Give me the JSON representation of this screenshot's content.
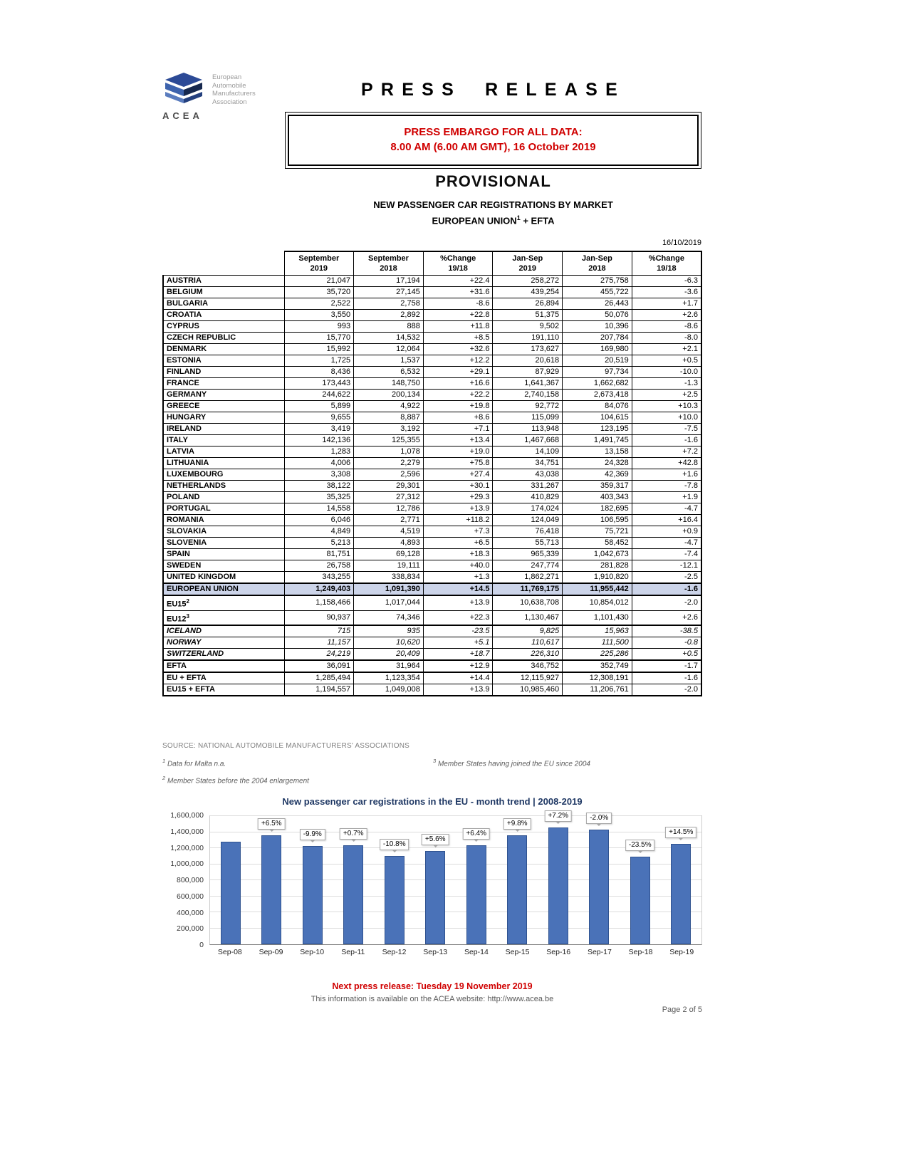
{
  "colors": {
    "accent_red": "#d00000",
    "eu_row_bg": "#ccd4e9",
    "bar_color": "#4a72b8",
    "chart_title": "#1f3864"
  },
  "logo": {
    "org_lines": [
      "European",
      "Automobile",
      "Manufacturers",
      "Association"
    ],
    "acronym": "ACEA"
  },
  "header": {
    "title": "PRESS RELEASE",
    "embargo_line1": "PRESS EMBARGO FOR ALL DATA:",
    "embargo_line2": "8.00 AM (6.00 AM GMT), 16 October 2019",
    "provisional": "PROVISIONAL",
    "subtitle": "NEW PASSENGER CAR REGISTRATIONS BY MARKET",
    "region_line": {
      "main": "EUROPEAN UNION",
      "sup": "1",
      "tail": " + EFTA"
    },
    "date": "16/10/2019"
  },
  "table": {
    "headers": [
      {
        "line1": "September",
        "line2": "2019"
      },
      {
        "line1": "September",
        "line2": "2018"
      },
      {
        "line1": "%Change",
        "line2": "19/18"
      },
      {
        "line1": "Jan-Sep",
        "line2": "2019"
      },
      {
        "line1": "Jan-Sep",
        "line2": "2018"
      },
      {
        "line1": "%Change",
        "line2": "19/18"
      }
    ],
    "rows": [
      {
        "label": "AUSTRIA",
        "values": [
          "21,047",
          "17,194",
          "+22.4",
          "258,272",
          "275,758",
          "-6.3"
        ]
      },
      {
        "label": "BELGIUM",
        "values": [
          "35,720",
          "27,145",
          "+31.6",
          "439,254",
          "455,722",
          "-3.6"
        ]
      },
      {
        "label": "BULGARIA",
        "values": [
          "2,522",
          "2,758",
          "-8.6",
          "26,894",
          "26,443",
          "+1.7"
        ]
      },
      {
        "label": "CROATIA",
        "values": [
          "3,550",
          "2,892",
          "+22.8",
          "51,375",
          "50,076",
          "+2.6"
        ]
      },
      {
        "label": "CYPRUS",
        "values": [
          "993",
          "888",
          "+11.8",
          "9,502",
          "10,396",
          "-8.6"
        ]
      },
      {
        "label": "CZECH REPUBLIC",
        "values": [
          "15,770",
          "14,532",
          "+8.5",
          "191,110",
          "207,784",
          "-8.0"
        ]
      },
      {
        "label": "DENMARK",
        "values": [
          "15,992",
          "12,064",
          "+32.6",
          "173,627",
          "169,980",
          "+2.1"
        ]
      },
      {
        "label": "ESTONIA",
        "values": [
          "1,725",
          "1,537",
          "+12.2",
          "20,618",
          "20,519",
          "+0.5"
        ]
      },
      {
        "label": "FINLAND",
        "values": [
          "8,436",
          "6,532",
          "+29.1",
          "87,929",
          "97,734",
          "-10.0"
        ]
      },
      {
        "label": "FRANCE",
        "values": [
          "173,443",
          "148,750",
          "+16.6",
          "1,641,367",
          "1,662,682",
          "-1.3"
        ]
      },
      {
        "label": "GERMANY",
        "values": [
          "244,622",
          "200,134",
          "+22.2",
          "2,740,158",
          "2,673,418",
          "+2.5"
        ]
      },
      {
        "label": "GREECE",
        "values": [
          "5,899",
          "4,922",
          "+19.8",
          "92,772",
          "84,076",
          "+10.3"
        ]
      },
      {
        "label": "HUNGARY",
        "values": [
          "9,655",
          "8,887",
          "+8.6",
          "115,099",
          "104,615",
          "+10.0"
        ]
      },
      {
        "label": "IRELAND",
        "values": [
          "3,419",
          "3,192",
          "+7.1",
          "113,948",
          "123,195",
          "-7.5"
        ]
      },
      {
        "label": "ITALY",
        "values": [
          "142,136",
          "125,355",
          "+13.4",
          "1,467,668",
          "1,491,745",
          "-1.6"
        ]
      },
      {
        "label": "LATVIA",
        "values": [
          "1,283",
          "1,078",
          "+19.0",
          "14,109",
          "13,158",
          "+7.2"
        ]
      },
      {
        "label": "LITHUANIA",
        "values": [
          "4,006",
          "2,279",
          "+75.8",
          "34,751",
          "24,328",
          "+42.8"
        ]
      },
      {
        "label": "LUXEMBOURG",
        "values": [
          "3,308",
          "2,596",
          "+27.4",
          "43,038",
          "42,369",
          "+1.6"
        ]
      },
      {
        "label": "NETHERLANDS",
        "values": [
          "38,122",
          "29,301",
          "+30.1",
          "331,267",
          "359,317",
          "-7.8"
        ]
      },
      {
        "label": "POLAND",
        "values": [
          "35,325",
          "27,312",
          "+29.3",
          "410,829",
          "403,343",
          "+1.9"
        ]
      },
      {
        "label": "PORTUGAL",
        "values": [
          "14,558",
          "12,786",
          "+13.9",
          "174,024",
          "182,695",
          "-4.7"
        ]
      },
      {
        "label": "ROMANIA",
        "values": [
          "6,046",
          "2,771",
          "+118.2",
          "124,049",
          "106,595",
          "+16.4"
        ]
      },
      {
        "label": "SLOVAKIA",
        "values": [
          "4,849",
          "4,519",
          "+7.3",
          "76,418",
          "75,721",
          "+0.9"
        ]
      },
      {
        "label": "SLOVENIA",
        "values": [
          "5,213",
          "4,893",
          "+6.5",
          "55,713",
          "58,452",
          "-4.7"
        ]
      },
      {
        "label": "SPAIN",
        "values": [
          "81,751",
          "69,128",
          "+18.3",
          "965,339",
          "1,042,673",
          "-7.4"
        ]
      },
      {
        "label": "SWEDEN",
        "values": [
          "26,758",
          "19,111",
          "+40.0",
          "247,774",
          "281,828",
          "-12.1"
        ]
      },
      {
        "label": "UNITED KINGDOM",
        "values": [
          "343,255",
          "338,834",
          "+1.3",
          "1,862,271",
          "1,910,820",
          "-2.5"
        ]
      },
      {
        "label": "EUROPEAN UNION",
        "values": [
          "1,249,403",
          "1,091,390",
          "+14.5",
          "11,769,175",
          "11,955,442",
          "-1.6"
        ],
        "style": [
          "highlight",
          "rule-top",
          "rule-bottom"
        ]
      },
      {
        "label": "EU15",
        "sup": "2",
        "values": [
          "1,158,466",
          "1,017,044",
          "+13.9",
          "10,638,708",
          "10,854,012",
          "-2.0"
        ]
      },
      {
        "label": "EU12",
        "sup": "3",
        "values": [
          "90,937",
          "74,346",
          "+22.3",
          "1,130,467",
          "1,101,430",
          "+2.6"
        ]
      },
      {
        "label": "ICELAND",
        "values": [
          "715",
          "935",
          "-23.5",
          "9,825",
          "15,963",
          "-38.5"
        ],
        "style": [
          "italic",
          "rule-top"
        ]
      },
      {
        "label": "NORWAY",
        "values": [
          "11,157",
          "10,620",
          "+5.1",
          "110,617",
          "111,500",
          "-0.8"
        ],
        "style": [
          "italic"
        ]
      },
      {
        "label": "SWITZERLAND",
        "values": [
          "24,219",
          "20,409",
          "+18.7",
          "226,310",
          "225,286",
          "+0.5"
        ],
        "style": [
          "italic"
        ]
      },
      {
        "label": "EFTA",
        "values": [
          "36,091",
          "31,964",
          "+12.9",
          "346,752",
          "352,749",
          "-1.7"
        ],
        "style": [
          "rule-top"
        ]
      },
      {
        "label": "EU + EFTA",
        "values": [
          "1,285,494",
          "1,123,354",
          "+14.4",
          "12,115,927",
          "12,308,191",
          "-1.6"
        ],
        "style": [
          "rule-top"
        ]
      },
      {
        "label": "EU15 + EFTA",
        "values": [
          "1,194,557",
          "1,049,008",
          "+13.9",
          "10,985,460",
          "11,206,761",
          "-2.0"
        ]
      }
    ]
  },
  "footnotes": {
    "source": "SOURCE: NATIONAL AUTOMOBILE MANUFACTURERS' ASSOCIATIONS",
    "fn1": {
      "sup": "1",
      "text": " Data for Malta n.a."
    },
    "fn2": {
      "sup": "2",
      "text": " Member States before the 2004 enlargement"
    },
    "fn3": {
      "sup": "3",
      "text": " Member States having joined the EU since 2004"
    }
  },
  "chart_data": {
    "type": "bar",
    "title": "New passenger car registrations in the EU - month trend | 2008-2019",
    "categories": [
      "Sep-08",
      "Sep-09",
      "Sep-10",
      "Sep-11",
      "Sep-12",
      "Sep-13",
      "Sep-14",
      "Sep-15",
      "Sep-16",
      "Sep-17",
      "Sep-18",
      "Sep-19"
    ],
    "values": [
      1277000,
      1360000,
      1225000,
      1234000,
      1101000,
      1162000,
      1236000,
      1358000,
      1456000,
      1427000,
      1091390,
      1249403
    ],
    "labels": [
      "",
      "+6.5%",
      "-9.9%",
      "+0.7%",
      "-10.8%",
      "+5.6%",
      "+6.4%",
      "+9.8%",
      "+7.2%",
      "-2.0%",
      "-23.5%",
      "+14.5%"
    ],
    "xlabel": "",
    "ylabel": "",
    "ylim": [
      0,
      1600000
    ],
    "ytick_step": 200000,
    "grid": true,
    "legend": "none"
  },
  "footer": {
    "next_release": "Next press release: Tuesday 19 November 2019",
    "info_prefix": "This information is available on the ACEA website: ",
    "info_url": "http://www.acea.be",
    "page_number": "Page 2 of 5"
  }
}
